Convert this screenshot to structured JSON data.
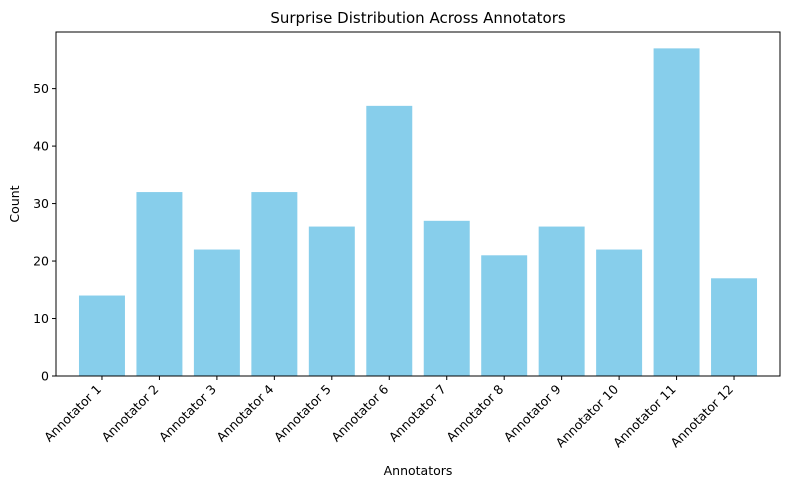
{
  "chart_data": {
    "type": "bar",
    "title": "Surprise Distribution Across Annotators",
    "xlabel": "Annotators",
    "ylabel": "Count",
    "categories": [
      "Annotator 1",
      "Annotator 2",
      "Annotator 3",
      "Annotator 4",
      "Annotator 5",
      "Annotator 6",
      "Annotator 7",
      "Annotator 8",
      "Annotator 9",
      "Annotator 10",
      "Annotator 11",
      "Annotator 12"
    ],
    "values": [
      14,
      32,
      22,
      32,
      26,
      47,
      27,
      21,
      26,
      22,
      57,
      17
    ],
    "ylim": [
      0,
      59.85
    ],
    "yticks": [
      0,
      10,
      20,
      30,
      40,
      50
    ],
    "bar_color": "#87CEEB",
    "grid": false,
    "legend": "none",
    "xtick_rotation_deg": 45
  }
}
